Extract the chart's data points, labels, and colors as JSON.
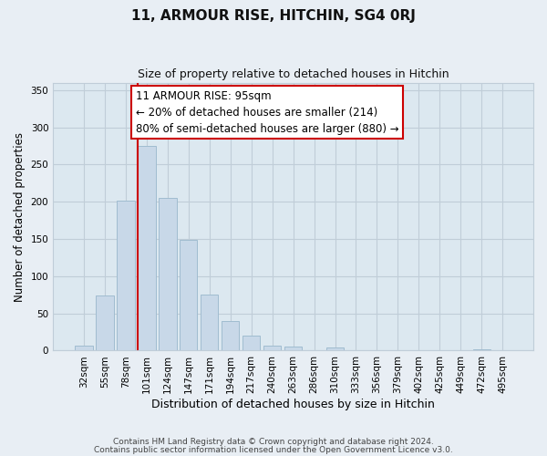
{
  "title": "11, ARMOUR RISE, HITCHIN, SG4 0RJ",
  "subtitle": "Size of property relative to detached houses in Hitchin",
  "xlabel": "Distribution of detached houses by size in Hitchin",
  "ylabel": "Number of detached properties",
  "bar_labels": [
    "32sqm",
    "55sqm",
    "78sqm",
    "101sqm",
    "124sqm",
    "147sqm",
    "171sqm",
    "194sqm",
    "217sqm",
    "240sqm",
    "263sqm",
    "286sqm",
    "310sqm",
    "333sqm",
    "356sqm",
    "379sqm",
    "402sqm",
    "425sqm",
    "449sqm",
    "472sqm",
    "495sqm"
  ],
  "bar_values": [
    7,
    74,
    201,
    275,
    205,
    149,
    75,
    40,
    20,
    7,
    5,
    1,
    4,
    0,
    0,
    0,
    0,
    0,
    0,
    2,
    0
  ],
  "bar_color": "#c8d8e8",
  "bar_edge_color": "#a0bcd0",
  "ylim": [
    0,
    360
  ],
  "yticks": [
    0,
    50,
    100,
    150,
    200,
    250,
    300,
    350
  ],
  "vline_color": "#cc0000",
  "annotation_text": "11 ARMOUR RISE: 95sqm\n← 20% of detached houses are smaller (214)\n80% of semi-detached houses are larger (880) →",
  "annotation_box_facecolor": "#ffffff",
  "annotation_box_edgecolor": "#cc0000",
  "footer_line1": "Contains HM Land Registry data © Crown copyright and database right 2024.",
  "footer_line2": "Contains public sector information licensed under the Open Government Licence v3.0.",
  "background_color": "#e8eef4",
  "plot_bg_color": "#dce8f0",
  "grid_color": "#c0cdd8"
}
